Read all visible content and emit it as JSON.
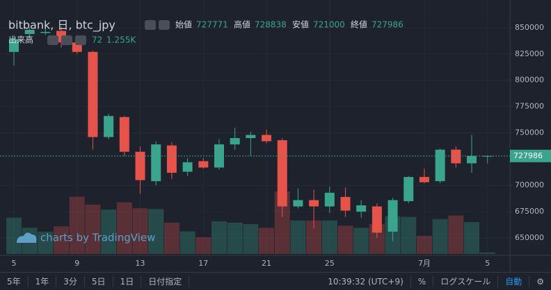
{
  "chart_data": {
    "type": "candlestick",
    "title": "bitbank, 日, btc_jpy",
    "ohlc_labels": [
      "始値",
      "高値",
      "安値",
      "終値"
    ],
    "volume_label": "出来高",
    "volume_ma": {
      "value": 1255,
      "label": "1.255K"
    },
    "watermark": "charts by TradingView",
    "categories": [
      "5",
      null,
      null,
      null,
      "9",
      null,
      null,
      null,
      "13",
      null,
      null,
      null,
      "17",
      null,
      null,
      null,
      "21",
      null,
      null,
      null,
      "25",
      null,
      null,
      null,
      null,
      null,
      "7月",
      null,
      null,
      null,
      "5"
    ],
    "open": [
      827000,
      844000,
      845000,
      847000,
      836000,
      827000,
      746000,
      765000,
      732000,
      704000,
      738000,
      713000,
      723000,
      717000,
      739000,
      745000,
      748000,
      743000,
      680000,
      686000,
      680000,
      689000,
      675000,
      680000,
      656000,
      685000,
      708000,
      704000,
      734000,
      721000,
      727771
    ],
    "high": [
      843000,
      850000,
      849000,
      851000,
      839000,
      828000,
      768000,
      766000,
      737000,
      742000,
      741000,
      726000,
      726000,
      744000,
      755000,
      751000,
      753000,
      745000,
      697000,
      696000,
      699000,
      698000,
      686000,
      683000,
      688000,
      709000,
      716000,
      735000,
      737000,
      748000,
      728838
    ],
    "low": [
      814000,
      840000,
      843000,
      831000,
      825000,
      734000,
      744000,
      728000,
      692000,
      700000,
      706000,
      709000,
      716000,
      715000,
      734000,
      728000,
      740000,
      670000,
      678000,
      659000,
      674000,
      670000,
      669000,
      650000,
      647000,
      683000,
      702000,
      702000,
      717000,
      712000,
      721000
    ],
    "close": [
      839000,
      848000,
      846000,
      836000,
      827000,
      746000,
      766000,
      732000,
      705000,
      739000,
      712000,
      722000,
      717000,
      739000,
      745000,
      748000,
      742000,
      680000,
      686000,
      680000,
      693000,
      676000,
      681000,
      655000,
      686000,
      708000,
      703000,
      734000,
      721000,
      728000,
      727986
    ],
    "volume": [
      1800,
      1300,
      1100,
      1370,
      2840,
      2450,
      2200,
      2560,
      2270,
      2230,
      1550,
      1120,
      830,
      1620,
      1550,
      1480,
      1300,
      3100,
      1660,
      1660,
      1660,
      1400,
      1300,
      1480,
      1870,
      1840,
      900,
      1730,
      1910,
      1580,
      72
    ],
    "up_color": "#3aa58c",
    "down_color": "#e5534b",
    "ylim": [
      634800,
      871100
    ],
    "yticks": [
      850000,
      825000,
      800000,
      775000,
      750000,
      700000,
      675000,
      650000
    ],
    "grid": true
  },
  "toolbar": {
    "ranges": [
      "5年",
      "1年",
      "3分",
      "5日",
      "1日",
      "日付指定"
    ],
    "time": "10:39:32 (UTC+9)",
    "options": [
      "%",
      "ログスケール",
      "自動"
    ]
  }
}
